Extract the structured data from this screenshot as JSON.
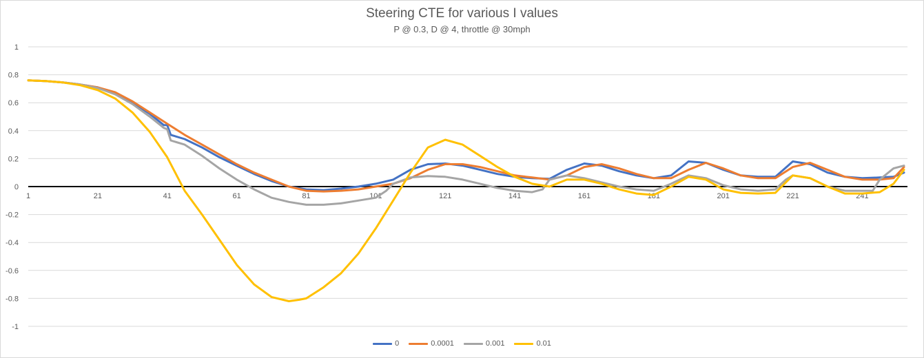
{
  "chart_data": {
    "type": "line",
    "title": "Steering CTE for various I values",
    "subtitle": "P @ 0.3, D @ 4, throttle @ 30mph",
    "xlabel": "",
    "ylabel": "",
    "xlim": [
      1,
      254
    ],
    "ylim": [
      -1,
      1
    ],
    "y_ticks": [
      "1",
      "0.8",
      "0.6",
      "0.4",
      "0.2",
      "0",
      "-0.2",
      "-0.4",
      "-0.6",
      "-0.8",
      "-1"
    ],
    "x_ticks": [
      "1",
      "21",
      "41",
      "61",
      "81",
      "101",
      "121",
      "141",
      "161",
      "181",
      "201",
      "221",
      "241"
    ],
    "grid": "horizontal",
    "legend_position": "bottom",
    "series": [
      {
        "name": "0",
        "color": "#4472c4",
        "points": [
          [
            1,
            0.76
          ],
          [
            6,
            0.755
          ],
          [
            11,
            0.745
          ],
          [
            16,
            0.73
          ],
          [
            21,
            0.71
          ],
          [
            26,
            0.67
          ],
          [
            31,
            0.6
          ],
          [
            36,
            0.52
          ],
          [
            40,
            0.44
          ],
          [
            41,
            0.44
          ],
          [
            42,
            0.37
          ],
          [
            46,
            0.34
          ],
          [
            51,
            0.28
          ],
          [
            56,
            0.21
          ],
          [
            61,
            0.15
          ],
          [
            66,
            0.09
          ],
          [
            71,
            0.04
          ],
          [
            76,
            0.0
          ],
          [
            81,
            -0.02
          ],
          [
            86,
            -0.025
          ],
          [
            91,
            -0.015
          ],
          [
            96,
            0.0
          ],
          [
            101,
            0.02
          ],
          [
            106,
            0.05
          ],
          [
            111,
            0.12
          ],
          [
            116,
            0.16
          ],
          [
            121,
            0.165
          ],
          [
            126,
            0.15
          ],
          [
            131,
            0.12
          ],
          [
            136,
            0.09
          ],
          [
            141,
            0.07
          ],
          [
            146,
            0.06
          ],
          [
            151,
            0.055
          ],
          [
            156,
            0.12
          ],
          [
            161,
            0.165
          ],
          [
            166,
            0.15
          ],
          [
            171,
            0.11
          ],
          [
            176,
            0.08
          ],
          [
            181,
            0.06
          ],
          [
            186,
            0.08
          ],
          [
            191,
            0.18
          ],
          [
            196,
            0.17
          ],
          [
            201,
            0.12
          ],
          [
            206,
            0.08
          ],
          [
            211,
            0.07
          ],
          [
            216,
            0.07
          ],
          [
            221,
            0.18
          ],
          [
            226,
            0.16
          ],
          [
            231,
            0.1
          ],
          [
            236,
            0.07
          ],
          [
            241,
            0.06
          ],
          [
            246,
            0.065
          ],
          [
            250,
            0.07
          ],
          [
            253,
            0.1
          ]
        ]
      },
      {
        "name": "0.0001",
        "color": "#ed7d31",
        "points": [
          [
            1,
            0.76
          ],
          [
            6,
            0.755
          ],
          [
            11,
            0.745
          ],
          [
            16,
            0.73
          ],
          [
            21,
            0.71
          ],
          [
            26,
            0.675
          ],
          [
            31,
            0.61
          ],
          [
            36,
            0.53
          ],
          [
            41,
            0.45
          ],
          [
            46,
            0.37
          ],
          [
            51,
            0.3
          ],
          [
            56,
            0.23
          ],
          [
            61,
            0.16
          ],
          [
            66,
            0.1
          ],
          [
            71,
            0.05
          ],
          [
            76,
            0.0
          ],
          [
            81,
            -0.03
          ],
          [
            86,
            -0.035
          ],
          [
            91,
            -0.03
          ],
          [
            96,
            -0.02
          ],
          [
            101,
            0.0
          ],
          [
            106,
            0.02
          ],
          [
            111,
            0.06
          ],
          [
            116,
            0.12
          ],
          [
            121,
            0.16
          ],
          [
            126,
            0.16
          ],
          [
            131,
            0.14
          ],
          [
            136,
            0.11
          ],
          [
            141,
            0.08
          ],
          [
            146,
            0.065
          ],
          [
            151,
            0.05
          ],
          [
            156,
            0.08
          ],
          [
            161,
            0.14
          ],
          [
            166,
            0.16
          ],
          [
            171,
            0.13
          ],
          [
            176,
            0.09
          ],
          [
            181,
            0.06
          ],
          [
            186,
            0.06
          ],
          [
            191,
            0.12
          ],
          [
            196,
            0.17
          ],
          [
            201,
            0.13
          ],
          [
            206,
            0.08
          ],
          [
            211,
            0.06
          ],
          [
            216,
            0.06
          ],
          [
            221,
            0.14
          ],
          [
            226,
            0.17
          ],
          [
            231,
            0.12
          ],
          [
            236,
            0.07
          ],
          [
            241,
            0.05
          ],
          [
            246,
            0.05
          ],
          [
            250,
            0.06
          ],
          [
            253,
            0.14
          ]
        ]
      },
      {
        "name": "0.001",
        "color": "#a5a5a5",
        "points": [
          [
            1,
            0.76
          ],
          [
            6,
            0.755
          ],
          [
            11,
            0.745
          ],
          [
            16,
            0.73
          ],
          [
            21,
            0.705
          ],
          [
            26,
            0.66
          ],
          [
            31,
            0.59
          ],
          [
            36,
            0.5
          ],
          [
            40,
            0.42
          ],
          [
            41,
            0.41
          ],
          [
            42,
            0.33
          ],
          [
            46,
            0.3
          ],
          [
            51,
            0.22
          ],
          [
            56,
            0.13
          ],
          [
            61,
            0.05
          ],
          [
            66,
            -0.02
          ],
          [
            71,
            -0.08
          ],
          [
            76,
            -0.11
          ],
          [
            81,
            -0.13
          ],
          [
            86,
            -0.13
          ],
          [
            91,
            -0.12
          ],
          [
            96,
            -0.1
          ],
          [
            101,
            -0.08
          ],
          [
            104,
            -0.03
          ],
          [
            106,
            0.02
          ],
          [
            111,
            0.065
          ],
          [
            116,
            0.075
          ],
          [
            121,
            0.07
          ],
          [
            126,
            0.05
          ],
          [
            131,
            0.02
          ],
          [
            136,
            -0.01
          ],
          [
            141,
            -0.03
          ],
          [
            146,
            -0.04
          ],
          [
            149,
            -0.02
          ],
          [
            151,
            0.05
          ],
          [
            156,
            0.08
          ],
          [
            161,
            0.06
          ],
          [
            166,
            0.03
          ],
          [
            171,
            0.0
          ],
          [
            176,
            -0.02
          ],
          [
            181,
            -0.03
          ],
          [
            186,
            0.02
          ],
          [
            191,
            0.08
          ],
          [
            196,
            0.06
          ],
          [
            201,
            0.01
          ],
          [
            206,
            -0.02
          ],
          [
            211,
            -0.03
          ],
          [
            216,
            -0.02
          ],
          [
            219,
            0.05
          ],
          [
            221,
            0.08
          ],
          [
            226,
            0.06
          ],
          [
            231,
            0.0
          ],
          [
            236,
            -0.03
          ],
          [
            241,
            -0.03
          ],
          [
            244,
            -0.03
          ],
          [
            246,
            0.05
          ],
          [
            250,
            0.13
          ],
          [
            253,
            0.15
          ]
        ]
      },
      {
        "name": "0.01",
        "color": "#ffc000",
        "points": [
          [
            1,
            0.76
          ],
          [
            6,
            0.755
          ],
          [
            11,
            0.745
          ],
          [
            16,
            0.725
          ],
          [
            21,
            0.69
          ],
          [
            26,
            0.63
          ],
          [
            31,
            0.53
          ],
          [
            36,
            0.39
          ],
          [
            41,
            0.21
          ],
          [
            46,
            -0.03
          ],
          [
            51,
            -0.2
          ],
          [
            56,
            -0.38
          ],
          [
            61,
            -0.56
          ],
          [
            66,
            -0.7
          ],
          [
            71,
            -0.79
          ],
          [
            76,
            -0.82
          ],
          [
            79,
            -0.81
          ],
          [
            81,
            -0.8
          ],
          [
            86,
            -0.72
          ],
          [
            91,
            -0.62
          ],
          [
            96,
            -0.48
          ],
          [
            101,
            -0.3
          ],
          [
            106,
            -0.1
          ],
          [
            111,
            0.1
          ],
          [
            116,
            0.28
          ],
          [
            121,
            0.335
          ],
          [
            126,
            0.3
          ],
          [
            131,
            0.22
          ],
          [
            136,
            0.14
          ],
          [
            141,
            0.07
          ],
          [
            146,
            0.02
          ],
          [
            151,
            0.0
          ],
          [
            156,
            0.05
          ],
          [
            161,
            0.05
          ],
          [
            166,
            0.02
          ],
          [
            171,
            -0.02
          ],
          [
            176,
            -0.05
          ],
          [
            181,
            -0.06
          ],
          [
            186,
            0.0
          ],
          [
            191,
            0.07
          ],
          [
            196,
            0.05
          ],
          [
            201,
            -0.02
          ],
          [
            206,
            -0.045
          ],
          [
            211,
            -0.05
          ],
          [
            216,
            -0.045
          ],
          [
            221,
            0.08
          ],
          [
            226,
            0.06
          ],
          [
            231,
            0.0
          ],
          [
            236,
            -0.05
          ],
          [
            241,
            -0.05
          ],
          [
            246,
            -0.04
          ],
          [
            250,
            0.02
          ],
          [
            253,
            0.12
          ]
        ]
      }
    ]
  }
}
